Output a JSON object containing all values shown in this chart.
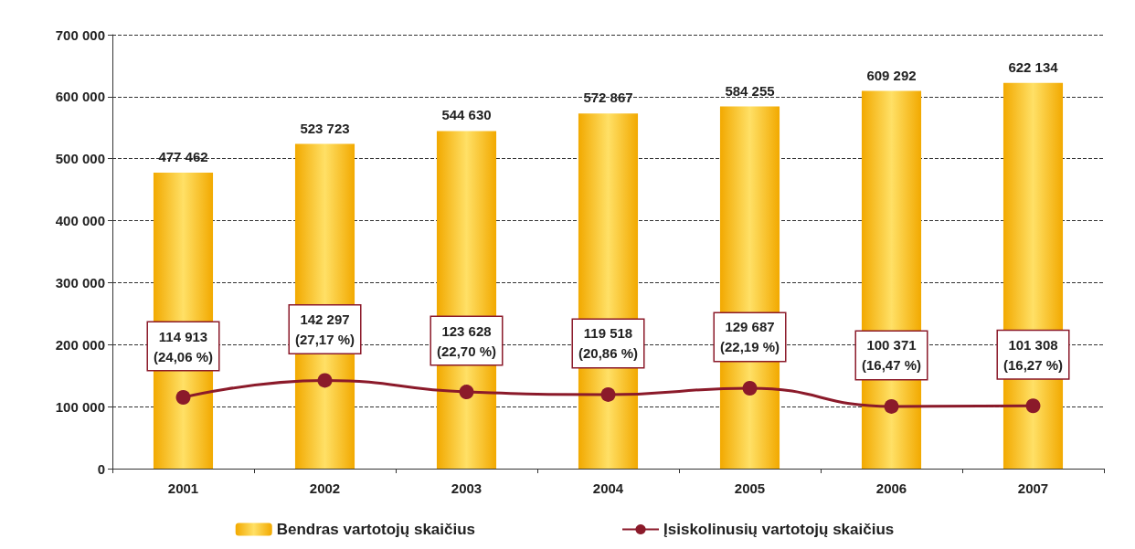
{
  "chart_data": {
    "type": "bar",
    "categories": [
      "2001",
      "2002",
      "2003",
      "2004",
      "2005",
      "2006",
      "2007"
    ],
    "series": [
      {
        "name": "Bendras vartotojų skaičius",
        "color": "#f2a900",
        "values": [
          477462,
          523723,
          544630,
          572867,
          584255,
          609292,
          622134
        ],
        "value_labels": [
          "477 462",
          "523 723",
          "544 630",
          "572 867",
          "584 255",
          "609 292",
          "622 134"
        ]
      },
      {
        "name": "Įsiskolinusių vartotojų skaičius",
        "type": "line",
        "color": "#8b1a2a",
        "values": [
          114913,
          142297,
          123628,
          119518,
          129687,
          100371,
          101308
        ],
        "value_labels": [
          "114 913\n(24,06 %)",
          "142 297\n(27,17 %)",
          "123 628\n(22,70 %)",
          "119 518\n(20,86 %)",
          "129 687\n(22,19 %)",
          "100 371\n(16,47 %)",
          "101 308\n(16,27 %)"
        ]
      }
    ],
    "ylim": [
      0,
      700000
    ],
    "yticks": [
      0,
      {
        "value": 100000,
        "label": "100 000"
      },
      {
        "value": 200000,
        "label": "200 000"
      },
      {
        "value": 300000,
        "label": "300 000"
      },
      {
        "value": 400000,
        "label": "400 000"
      },
      {
        "value": 500000,
        "label": "500 000"
      },
      {
        "value": 600000,
        "label": "600 000"
      },
      {
        "value": 700000,
        "label": "700 000"
      }
    ],
    "grid": "y",
    "legend": "bottom",
    "marker": "circle",
    "line_style": "solid"
  }
}
